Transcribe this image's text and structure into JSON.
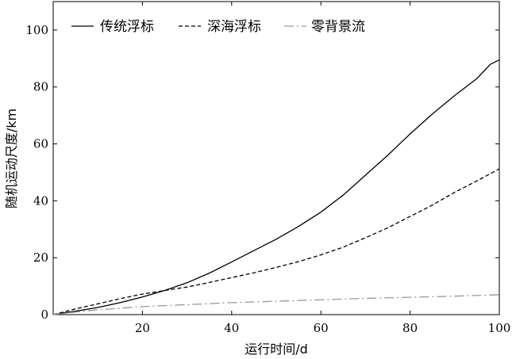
{
  "chart_data": {
    "type": "line",
    "title": "",
    "xlabel": "运行时间/d",
    "ylabel": "随机运动尺度/km",
    "xlim": [
      0,
      100
    ],
    "ylim": [
      0,
      110
    ],
    "xticks": [
      20,
      40,
      60,
      80,
      100
    ],
    "yticks": [
      0,
      20,
      40,
      60,
      80,
      100
    ],
    "grid": false,
    "legend_position": "top-left",
    "series": [
      {
        "name": "传统浮标",
        "style": "solid",
        "color": "#000000",
        "x": [
          0,
          5,
          10,
          15,
          20,
          25,
          30,
          35,
          40,
          45,
          50,
          55,
          60,
          65,
          70,
          75,
          80,
          85,
          90,
          95,
          98,
          100
        ],
        "y": [
          0,
          1.2,
          2.5,
          4.2,
          6.2,
          8.5,
          11.2,
          14.6,
          18.5,
          22.5,
          26.5,
          31,
          36,
          42,
          49,
          56,
          63.5,
          70.5,
          77,
          83,
          88,
          89.5
        ]
      },
      {
        "name": "深海浮标",
        "style": "dashed",
        "color": "#000000",
        "x": [
          0,
          5,
          10,
          15,
          20,
          25,
          30,
          35,
          40,
          45,
          50,
          55,
          60,
          65,
          70,
          75,
          80,
          85,
          90,
          95,
          100
        ],
        "y": [
          0,
          2,
          3.8,
          5.6,
          7.2,
          8.5,
          9.7,
          11.3,
          13,
          14.7,
          16.6,
          18.6,
          21,
          23.7,
          27,
          30.5,
          34.5,
          38.5,
          43,
          47,
          51.2
        ]
      },
      {
        "name": "零背景流",
        "style": "dash-dot",
        "color": "#999999",
        "x": [
          0,
          5,
          10,
          20,
          30,
          40,
          50,
          60,
          70,
          80,
          90,
          100
        ],
        "y": [
          0,
          0.9,
          1.7,
          2.8,
          3.5,
          4.2,
          4.7,
          5.2,
          5.7,
          6.1,
          6.5,
          7
        ]
      }
    ]
  }
}
